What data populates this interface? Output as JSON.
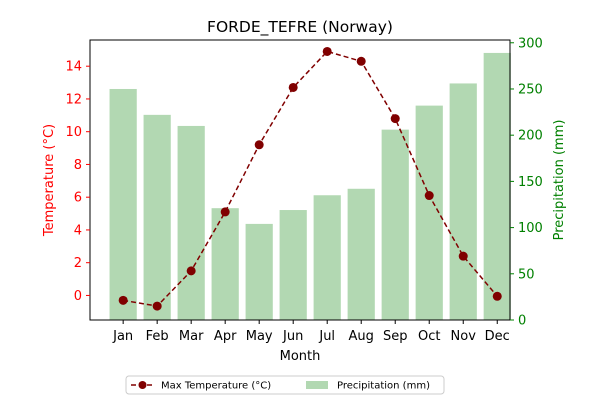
{
  "chart_data": {
    "type": "bar",
    "title": "FORDE_TEFRE (Norway)",
    "xlabel": "Month",
    "ylabel_left": "Temperature (°C)",
    "ylabel_right": "Precipitation (mm)",
    "categories": [
      "Jan",
      "Feb",
      "Mar",
      "Apr",
      "May",
      "Jun",
      "Jul",
      "Aug",
      "Sep",
      "Oct",
      "Nov",
      "Dec"
    ],
    "ylim_left": [
      -1.5,
      15.6
    ],
    "ylim_right": [
      0,
      303
    ],
    "yticks_left": [
      0,
      2,
      4,
      6,
      8,
      10,
      12,
      14
    ],
    "yticks_right": [
      0,
      50,
      100,
      150,
      200,
      250,
      300
    ],
    "series": [
      {
        "name": "Max Temperature (°C)",
        "kind": "line",
        "axis": "left",
        "color": "#800000",
        "values": [
          -0.3,
          -0.65,
          1.5,
          5.1,
          9.2,
          12.7,
          14.9,
          14.3,
          10.8,
          6.1,
          2.4,
          -0.05
        ]
      },
      {
        "name": "Precipitation (mm)",
        "kind": "bar",
        "axis": "right",
        "color": "#b2d8b2",
        "values": [
          250,
          222,
          210,
          121,
          104,
          119,
          135,
          142,
          206,
          232,
          256,
          289
        ]
      }
    ],
    "left_axis_color": "#ff0000",
    "right_axis_color": "#008000",
    "grid": false,
    "legend_position": "bottom-center"
  }
}
